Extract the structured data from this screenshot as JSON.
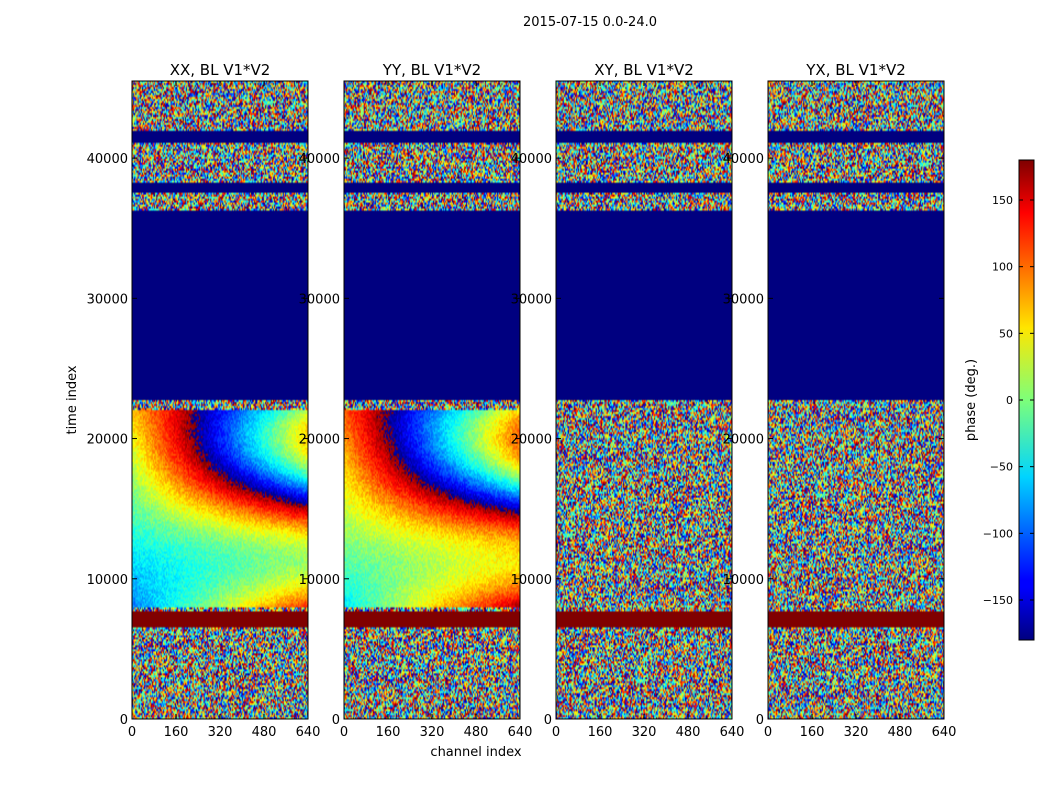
{
  "figure": {
    "suptitle": "2015-07-15 0.0-24.0"
  },
  "chart_data": {
    "type": "heatmap",
    "xlabel": "channel index",
    "ylabel": "time index",
    "xlim": [
      0,
      640
    ],
    "ylim": [
      0,
      45500
    ],
    "xticks": [
      "0",
      "160",
      "320",
      "480",
      "640"
    ],
    "yticks": [
      "0",
      "10000",
      "20000",
      "30000",
      "40000"
    ],
    "panels": [
      {
        "title": "XX, BL V1*V2",
        "pol": "XX",
        "kind": "parallel"
      },
      {
        "title": "YY, BL V1*V2",
        "pol": "YY",
        "kind": "parallel"
      },
      {
        "title": "XY, BL V1*V2",
        "pol": "XY",
        "kind": "cross"
      },
      {
        "title": "YX, BL V1*V2",
        "pol": "YX",
        "kind": "cross"
      }
    ],
    "flagged_ranges": [
      {
        "from": 22800,
        "to": 36300,
        "value": -180
      },
      {
        "from": 37600,
        "to": 38300,
        "value": -180
      },
      {
        "from": 41100,
        "to": 41900,
        "value": -180
      },
      {
        "from": 6600,
        "to": 7700,
        "value": 180
      }
    ],
    "colorbar": {
      "label": "phase (deg.)",
      "range": [
        -180,
        180
      ],
      "ticks": [
        "150",
        "100",
        "50",
        "0",
        "−50",
        "−100",
        "−150"
      ]
    }
  }
}
